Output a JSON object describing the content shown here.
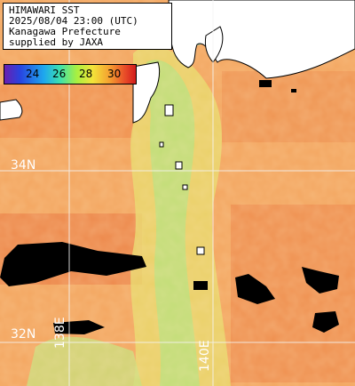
{
  "info": {
    "line1": "HIMAWARI SST",
    "line2": "2025/08/04 23:00 (UTC)",
    "line3": "Kanagawa Prefecture",
    "line4": "supplied by JAXA"
  },
  "legend": {
    "ticks": [
      "24",
      "26",
      "28",
      "30"
    ],
    "colors": [
      "#6a1fb0",
      "#2844e0",
      "#1ea7ee",
      "#3be0b0",
      "#a8f040",
      "#f2e43a",
      "#f5a030",
      "#e84a28",
      "#d11c1c"
    ]
  },
  "grid_labels": {
    "lat_34": "34N",
    "lat_32": "32N",
    "lon_138": "138E",
    "lon_140": "140E"
  }
}
